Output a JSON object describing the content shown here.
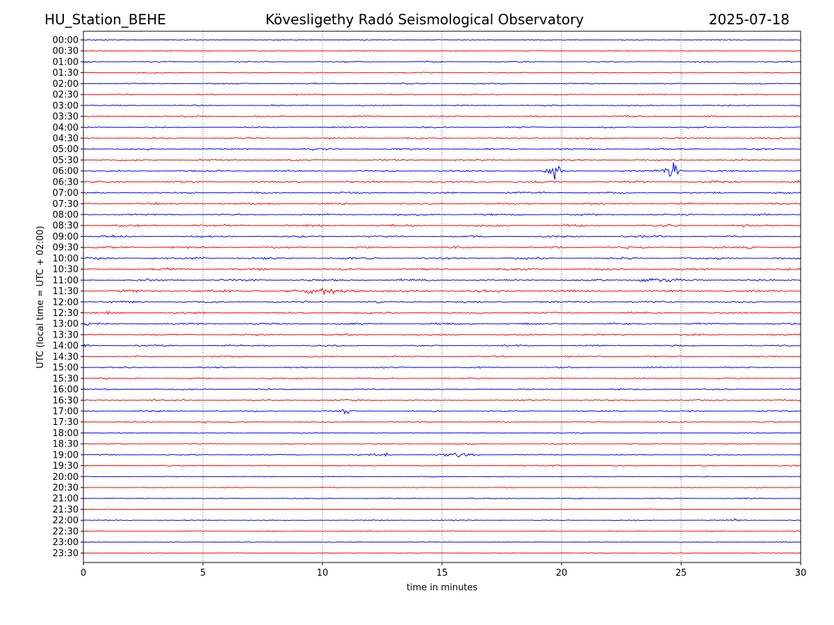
{
  "header": {
    "station": "HU_Station_BEHE",
    "observatory": "Kövesligethy Radó Seismological Observatory",
    "date": "2025-07-18"
  },
  "chart_data": {
    "type": "line",
    "title": "Kövesligethy Radó Seismological Observatory",
    "xlabel": "time in minutes",
    "ylabel": "UTC (local time = UTC + 02:00)",
    "xlim": [
      0,
      30
    ],
    "x_ticks": [
      "0",
      "5",
      "10",
      "15",
      "20",
      "25",
      "30"
    ],
    "x_tick_values": [
      0,
      5,
      10,
      15,
      20,
      25,
      30
    ],
    "grid": "vertical dotted at x ticks",
    "series_colors": [
      "#0000ff",
      "#ff0000"
    ],
    "traces": [
      "00:00",
      "00:30",
      "01:00",
      "01:30",
      "02:00",
      "02:30",
      "03:00",
      "03:30",
      "04:00",
      "04:30",
      "05:00",
      "05:30",
      "06:00",
      "06:30",
      "07:00",
      "07:30",
      "08:00",
      "08:30",
      "09:00",
      "09:30",
      "10:00",
      "10:30",
      "11:00",
      "11:30",
      "12:00",
      "12:30",
      "13:00",
      "13:30",
      "14:00",
      "14:30",
      "15:00",
      "15:30",
      "16:00",
      "16:30",
      "17:00",
      "17:30",
      "18:00",
      "18:30",
      "19:00",
      "19:30",
      "20:00",
      "20:30",
      "21:00",
      "21:30",
      "22:00",
      "22:30",
      "23:00",
      "23:30"
    ],
    "noise_levels": [
      0.5,
      0.5,
      0.6,
      0.5,
      0.6,
      0.6,
      0.6,
      0.7,
      0.7,
      0.8,
      0.9,
      0.8,
      0.9,
      1.0,
      0.9,
      0.9,
      0.9,
      1.0,
      1.0,
      1.0,
      1.0,
      1.0,
      1.1,
      1.2,
      0.9,
      0.9,
      0.9,
      0.8,
      0.8,
      0.7,
      0.7,
      0.6,
      0.7,
      0.7,
      0.7,
      0.6,
      0.5,
      0.5,
      0.6,
      0.5,
      0.4,
      0.4,
      0.5,
      0.4,
      0.5,
      0.4,
      0.4,
      0.4
    ],
    "events": [
      {
        "trace": "06:00",
        "minute": 19.7,
        "amplitude": 10,
        "duration": 0.25
      },
      {
        "trace": "06:00",
        "minute": 24.6,
        "amplitude": 12,
        "duration": 0.25
      },
      {
        "trace": "11:30",
        "minute": 10.0,
        "amplitude": 2.2,
        "duration": 1.4
      },
      {
        "trace": "11:00",
        "minute": 24.0,
        "amplitude": 2.6,
        "duration": 0.8
      },
      {
        "trace": "10:00",
        "minute": 4.8,
        "amplitude": 1.6,
        "duration": 0.3
      },
      {
        "trace": "17:00",
        "minute": 11.0,
        "amplitude": 2.0,
        "duration": 0.3
      },
      {
        "trace": "17:30",
        "minute": 5.1,
        "amplitude": 1.5,
        "duration": 0.2
      },
      {
        "trace": "19:00",
        "minute": 12.5,
        "amplitude": 1.5,
        "duration": 0.4
      },
      {
        "trace": "19:00",
        "minute": 15.2,
        "amplitude": 1.4,
        "duration": 0.3
      },
      {
        "trace": "19:00",
        "minute": 15.8,
        "amplitude": 2.2,
        "duration": 0.5
      },
      {
        "trace": "19:30",
        "minute": 19.9,
        "amplitude": 1.2,
        "duration": 0.3
      },
      {
        "trace": "22:00",
        "minute": 27.4,
        "amplitude": 1.8,
        "duration": 0.3
      },
      {
        "trace": "09:30",
        "minute": 27.9,
        "amplitude": 1.4,
        "duration": 0.3
      },
      {
        "trace": "13:00",
        "minute": 0.1,
        "amplitude": 1.4,
        "duration": 0.2
      },
      {
        "trace": "14:00",
        "minute": 0.1,
        "amplitude": 1.4,
        "duration": 0.2
      }
    ]
  }
}
